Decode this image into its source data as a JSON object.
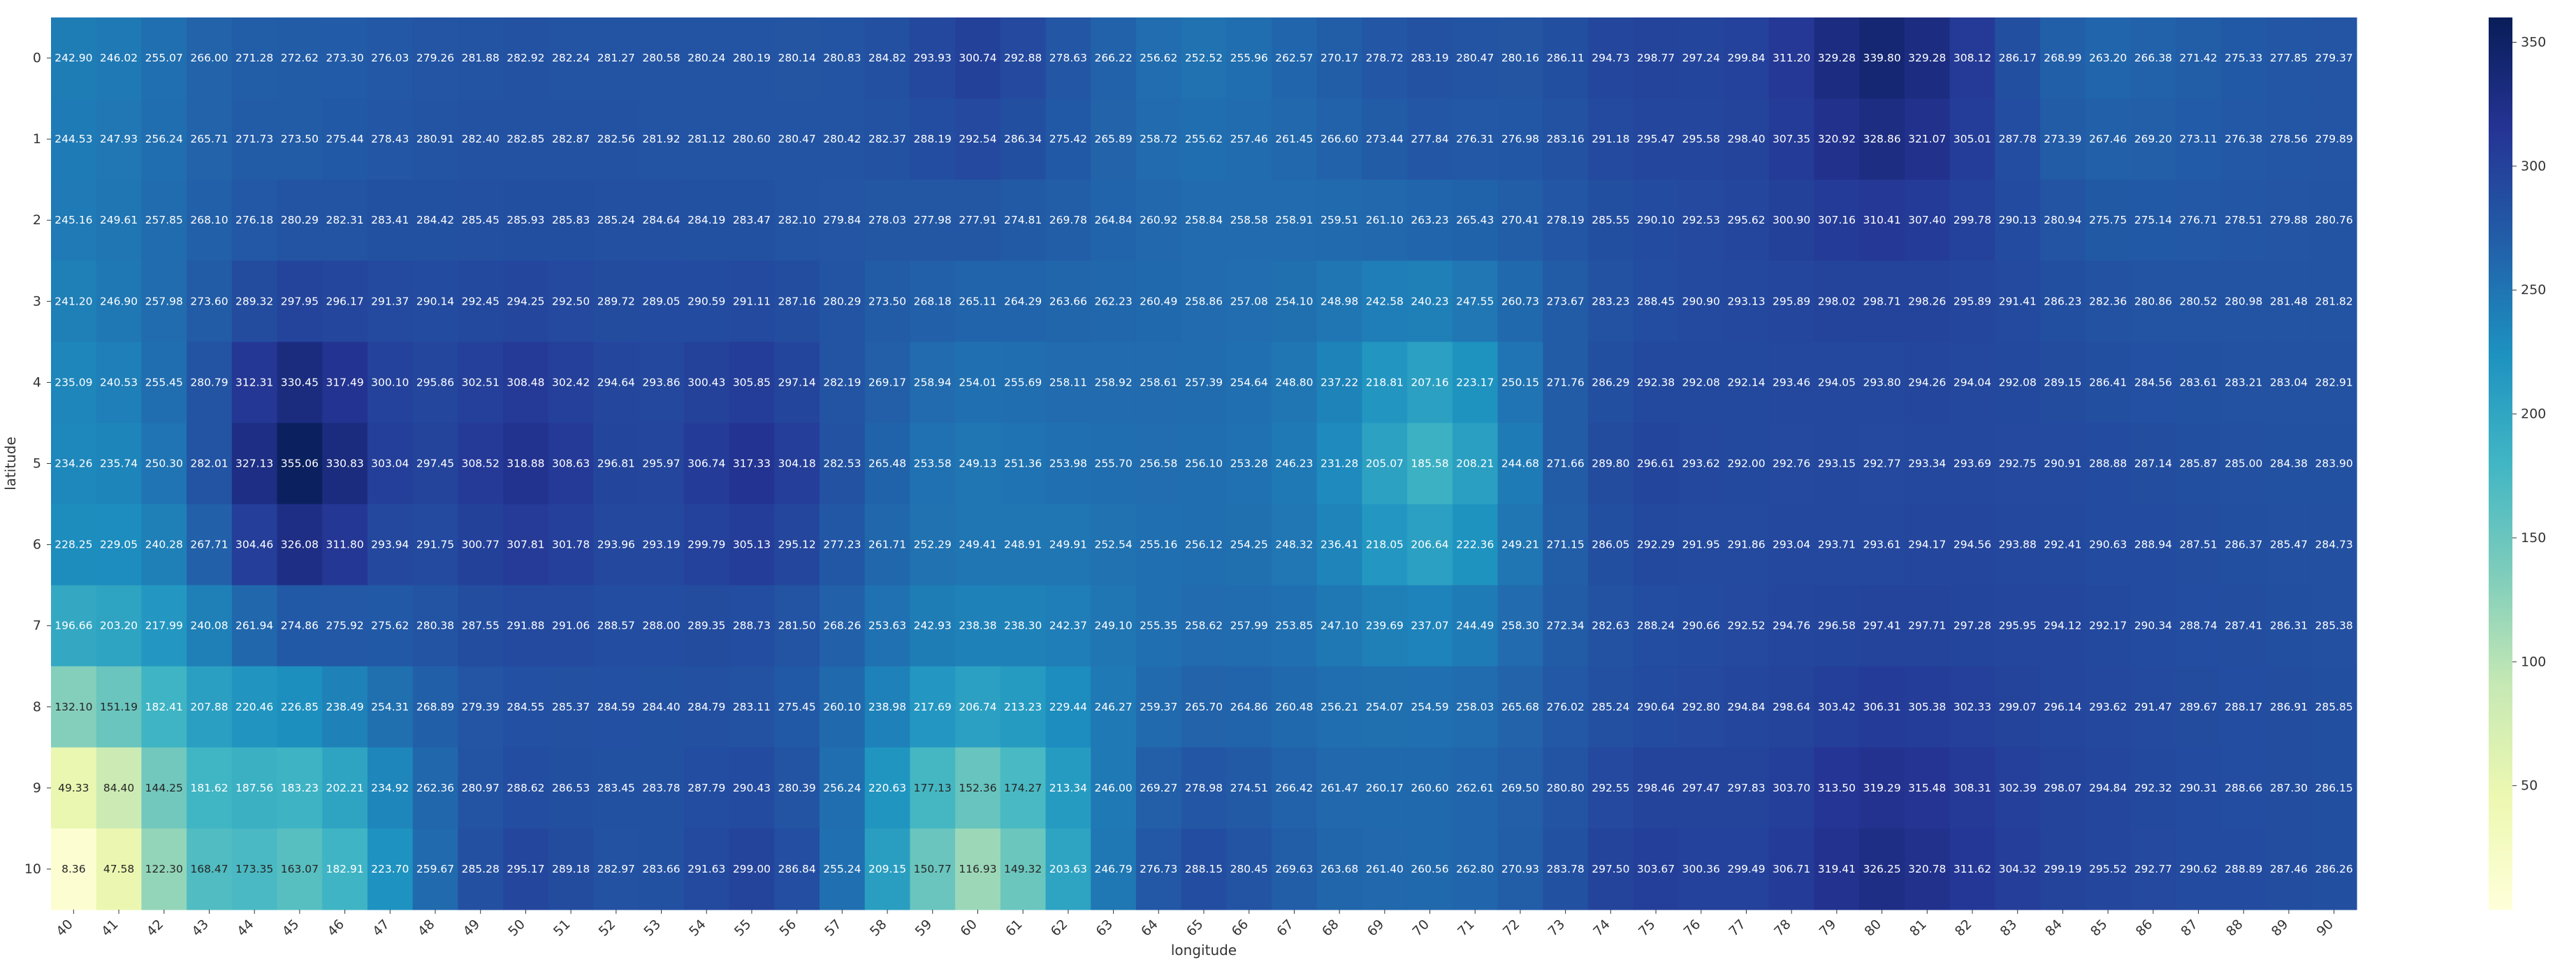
{
  "chart_data": {
    "type": "heatmap",
    "title": "",
    "xlabel": "longitude",
    "ylabel": "latitude",
    "x": [
      40,
      41,
      42,
      43,
      44,
      45,
      46,
      47,
      48,
      49,
      50,
      51,
      52,
      53,
      54,
      55,
      56,
      57,
      58,
      59,
      60,
      61,
      62,
      63,
      64,
      65,
      66,
      67,
      68,
      69,
      70,
      71,
      72,
      73,
      74,
      75,
      76,
      77,
      78,
      79,
      80,
      81,
      82,
      83,
      84,
      85,
      86,
      87,
      88,
      89,
      90
    ],
    "y": [
      0,
      1,
      2,
      3,
      4,
      5,
      6,
      7,
      8,
      9,
      10
    ],
    "values": [
      [
        242.9,
        246.02,
        255.07,
        266.0,
        271.28,
        272.62,
        273.3,
        276.03,
        279.26,
        281.88,
        282.92,
        282.24,
        281.27,
        280.58,
        280.24,
        280.19,
        280.14,
        280.83,
        284.82,
        293.93,
        300.74,
        292.88,
        278.63,
        266.22,
        256.62,
        252.52,
        255.96,
        262.57,
        270.17,
        278.72,
        283.19,
        280.47,
        280.16,
        286.11,
        294.73,
        298.77,
        297.24,
        299.84,
        311.2,
        329.28,
        339.8,
        329.28,
        308.12,
        286.17,
        268.99,
        263.2,
        266.38,
        271.42,
        275.33,
        277.85,
        279.37
      ],
      [
        244.53,
        247.93,
        256.24,
        265.71,
        271.73,
        273.5,
        275.44,
        278.43,
        280.91,
        282.4,
        282.85,
        282.87,
        282.56,
        281.92,
        281.12,
        280.6,
        280.47,
        280.42,
        282.37,
        288.19,
        292.54,
        286.34,
        275.42,
        265.89,
        258.72,
        255.62,
        257.46,
        261.45,
        266.6,
        273.44,
        277.84,
        276.31,
        276.98,
        283.16,
        291.18,
        295.47,
        295.58,
        298.4,
        307.35,
        320.92,
        328.86,
        321.07,
        305.01,
        287.78,
        273.39,
        267.46,
        269.2,
        273.11,
        276.38,
        278.56,
        279.89
      ],
      [
        245.16,
        249.61,
        257.85,
        268.1,
        276.18,
        280.29,
        282.31,
        283.41,
        284.42,
        285.45,
        285.93,
        285.83,
        285.24,
        284.64,
        284.19,
        283.47,
        282.1,
        279.84,
        278.03,
        277.98,
        277.91,
        274.81,
        269.78,
        264.84,
        260.92,
        258.84,
        258.58,
        258.91,
        259.51,
        261.1,
        263.23,
        265.43,
        270.41,
        278.19,
        285.55,
        290.1,
        292.53,
        295.62,
        300.9,
        307.16,
        310.41,
        307.4,
        299.78,
        290.13,
        280.94,
        275.75,
        275.14,
        276.71,
        278.51,
        279.88,
        280.76
      ],
      [
        241.2,
        246.9,
        257.98,
        273.6,
        289.32,
        297.95,
        296.17,
        291.37,
        290.14,
        292.45,
        294.25,
        292.5,
        289.72,
        289.05,
        290.59,
        291.11,
        287.16,
        280.29,
        273.5,
        268.18,
        265.11,
        264.29,
        263.66,
        262.23,
        260.49,
        258.86,
        257.08,
        254.1,
        248.98,
        242.58,
        240.23,
        247.55,
        260.73,
        273.67,
        283.23,
        288.45,
        290.9,
        293.13,
        295.89,
        298.02,
        298.71,
        298.26,
        295.89,
        291.41,
        286.23,
        282.36,
        280.86,
        280.52,
        280.98,
        281.48,
        281.82
      ],
      [
        235.09,
        240.53,
        255.45,
        280.79,
        312.31,
        330.45,
        317.49,
        300.1,
        295.86,
        302.51,
        308.48,
        302.42,
        294.64,
        293.86,
        300.43,
        305.85,
        297.14,
        282.19,
        269.17,
        258.94,
        254.01,
        255.69,
        258.11,
        258.92,
        258.61,
        257.39,
        254.64,
        248.8,
        237.22,
        218.81,
        207.16,
        223.17,
        250.15,
        271.76,
        286.29,
        292.38,
        292.08,
        292.14,
        293.46,
        294.05,
        293.8,
        294.26,
        294.04,
        292.08,
        289.15,
        286.41,
        284.56,
        283.61,
        283.21,
        283.04,
        282.91
      ],
      [
        234.26,
        235.74,
        250.3,
        282.01,
        327.13,
        355.06,
        330.83,
        303.04,
        297.45,
        308.52,
        318.88,
        308.63,
        296.81,
        295.97,
        306.74,
        317.33,
        304.18,
        282.53,
        265.48,
        253.58,
        249.13,
        251.36,
        253.98,
        255.7,
        256.58,
        256.1,
        253.28,
        246.23,
        231.28,
        205.07,
        185.58,
        208.21,
        244.68,
        271.66,
        289.8,
        296.61,
        293.62,
        292.0,
        292.76,
        293.15,
        292.77,
        293.34,
        293.69,
        292.75,
        290.91,
        288.88,
        287.14,
        285.87,
        285.0,
        284.38,
        283.9
      ],
      [
        228.25,
        229.05,
        240.28,
        267.71,
        304.46,
        326.08,
        311.8,
        293.94,
        291.75,
        300.77,
        307.81,
        301.78,
        293.96,
        293.19,
        299.79,
        305.13,
        295.12,
        277.23,
        261.71,
        252.29,
        249.41,
        248.91,
        249.91,
        252.54,
        255.16,
        256.12,
        254.25,
        248.32,
        236.41,
        218.05,
        206.64,
        222.36,
        249.21,
        271.15,
        286.05,
        292.29,
        291.95,
        291.86,
        293.04,
        293.71,
        293.61,
        294.17,
        294.56,
        293.88,
        292.41,
        290.63,
        288.94,
        287.51,
        286.37,
        285.47,
        284.73
      ],
      [
        196.66,
        203.2,
        217.99,
        240.08,
        261.94,
        274.86,
        275.92,
        275.62,
        280.38,
        287.55,
        291.88,
        291.06,
        288.57,
        288.0,
        289.35,
        288.73,
        281.5,
        268.26,
        253.63,
        242.93,
        238.38,
        238.3,
        242.37,
        249.1,
        255.35,
        258.62,
        257.99,
        253.85,
        247.1,
        239.69,
        237.07,
        244.49,
        258.3,
        272.34,
        282.63,
        288.24,
        290.66,
        292.52,
        294.76,
        296.58,
        297.41,
        297.71,
        297.28,
        295.95,
        294.12,
        292.17,
        290.34,
        288.74,
        287.41,
        286.31,
        285.38
      ],
      [
        132.1,
        151.19,
        182.41,
        207.88,
        220.46,
        226.85,
        238.49,
        254.31,
        268.89,
        279.39,
        284.55,
        285.37,
        284.59,
        284.4,
        284.79,
        283.11,
        275.45,
        260.1,
        238.98,
        217.69,
        206.74,
        213.23,
        229.44,
        246.27,
        259.37,
        265.7,
        264.86,
        260.48,
        256.21,
        254.07,
        254.59,
        258.03,
        265.68,
        276.02,
        285.24,
        290.64,
        292.8,
        294.84,
        298.64,
        303.42,
        306.31,
        305.38,
        302.33,
        299.07,
        296.14,
        293.62,
        291.47,
        289.67,
        288.17,
        286.91,
        285.85
      ],
      [
        49.33,
        84.4,
        144.25,
        181.62,
        187.56,
        183.23,
        202.21,
        234.92,
        262.36,
        280.97,
        288.62,
        286.53,
        283.45,
        283.78,
        287.79,
        290.43,
        280.39,
        256.24,
        220.63,
        177.13,
        152.36,
        174.27,
        213.34,
        246.0,
        269.27,
        278.98,
        274.51,
        266.42,
        261.47,
        260.17,
        260.6,
        262.61,
        269.5,
        280.8,
        292.55,
        298.46,
        297.47,
        297.83,
        303.7,
        313.5,
        319.29,
        315.48,
        308.31,
        302.39,
        298.07,
        294.84,
        292.32,
        290.31,
        288.66,
        287.3,
        286.15
      ],
      [
        8.36,
        47.58,
        122.3,
        168.47,
        173.35,
        163.07,
        182.91,
        223.7,
        259.67,
        285.28,
        295.17,
        289.18,
        282.97,
        283.66,
        291.63,
        299.0,
        286.84,
        255.24,
        209.15,
        150.77,
        116.93,
        149.32,
        203.63,
        246.79,
        276.73,
        288.15,
        280.45,
        269.63,
        263.68,
        261.4,
        260.56,
        262.8,
        270.93,
        283.78,
        297.5,
        303.67,
        300.36,
        299.49,
        306.71,
        319.41,
        326.25,
        320.78,
        311.62,
        304.32,
        299.19,
        295.52,
        292.77,
        290.62,
        288.89,
        287.46,
        286.26
      ]
    ],
    "colorbar": {
      "ticks": [
        50,
        100,
        150,
        200,
        250,
        300,
        350
      ],
      "min": 0,
      "max": 360,
      "colormap": "YlGnBu"
    },
    "grid": false,
    "legend": "colorbar-right"
  }
}
